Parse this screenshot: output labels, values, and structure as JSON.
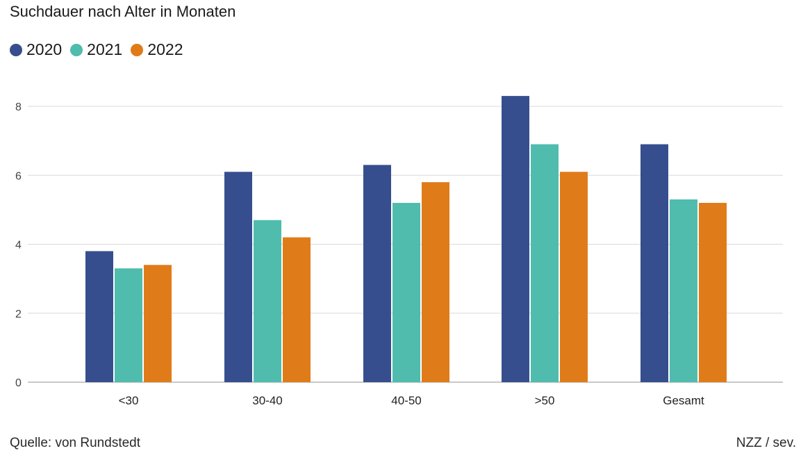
{
  "chart_data": {
    "type": "bar",
    "title": "Suchdauer nach Alter in Monaten",
    "categories": [
      "<30",
      "30-40",
      "40-50",
      ">50",
      "Gesamt"
    ],
    "series": [
      {
        "name": "2020",
        "color": "#364e8d",
        "values": [
          3.8,
          6.1,
          6.3,
          8.3,
          6.9
        ]
      },
      {
        "name": "2021",
        "color": "#4fbcad",
        "values": [
          3.3,
          4.7,
          5.2,
          6.9,
          5.3
        ]
      },
      {
        "name": "2022",
        "color": "#e07b19",
        "values": [
          3.4,
          4.2,
          5.8,
          6.1,
          5.2
        ]
      }
    ],
    "ylim": [
      0,
      8
    ],
    "yticks": [
      0,
      2,
      4,
      6,
      8
    ],
    "grid": true,
    "legend_position": "top-left"
  },
  "footer": {
    "source": "Quelle: von Rundstedt",
    "credit": "NZZ / sev."
  }
}
